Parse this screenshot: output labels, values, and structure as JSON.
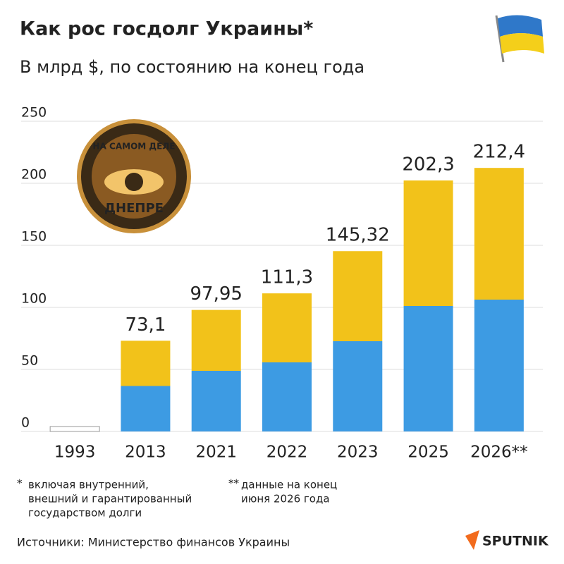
{
  "chart_data": {
    "type": "bar",
    "title": "Как рос госдолг Украины*",
    "subtitle": "В млрд $, по состоянию на конец года",
    "categories": [
      "1993",
      "2013",
      "2021",
      "2022",
      "2023",
      "2025",
      "2026**"
    ],
    "values": [
      4,
      73.1,
      97.95,
      111.3,
      145.32,
      202.3,
      212.4
    ],
    "value_labels": [
      null,
      "73,1",
      "97,95",
      "111,3",
      "145,32",
      "202,3",
      "212,4"
    ],
    "colors": [
      "#f2c21a",
      "#3d9be3"
    ],
    "ylim": [
      0,
      250
    ],
    "yticks": [
      0,
      50,
      100,
      150,
      200,
      250
    ],
    "grid": true,
    "footnotes": [
      {
        "mark": "*",
        "lines": [
          "включая внутренний,",
          "внешний и гарантированный",
          "государством долги"
        ]
      },
      {
        "mark": "**",
        "lines": [
          "данные на конец",
          "июня 2026 года"
        ]
      }
    ],
    "source": "Источники: Министерство финансов Украины",
    "brand": "SPUTNIK",
    "watermark": [
      "НА САМОМ ДЕЛЕ",
      "ДНЕПРЕ"
    ]
  }
}
